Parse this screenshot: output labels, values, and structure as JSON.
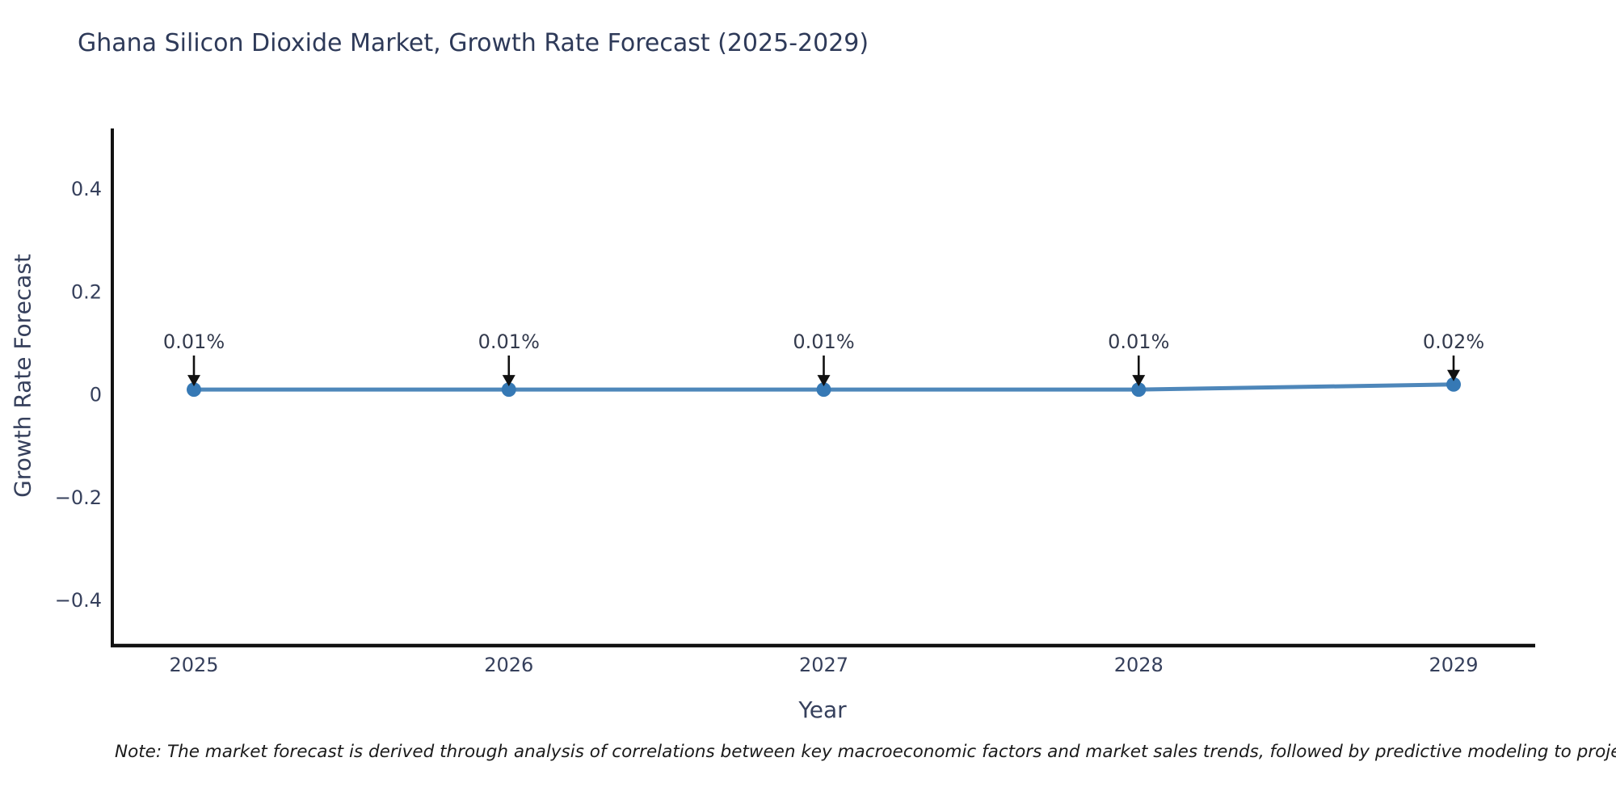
{
  "title": "Ghana Silicon Dioxide Market, Growth Rate Forecast (2025-2029)",
  "note": "Note: The market forecast is derived through analysis of correlations between key macroeconomic factors and market sales trends, followed by predictive modeling to project future sal",
  "chart_data": {
    "type": "line",
    "title": "Ghana Silicon Dioxide Market, Growth Rate Forecast (2025-2029)",
    "xlabel": "Year",
    "ylabel": "Growth Rate Forecast",
    "categories": [
      "2025",
      "2026",
      "2027",
      "2028",
      "2029"
    ],
    "series": [
      {
        "name": "Growth Rate Forecast",
        "values": [
          0.01,
          0.01,
          0.01,
          0.01,
          0.02
        ],
        "annotations": [
          "0.01%",
          "0.01%",
          "0.01%",
          "0.01%",
          "0.02%"
        ]
      }
    ],
    "ylim": [
      -0.49,
      0.51
    ],
    "yticks": [
      0.4,
      0.2,
      0,
      -0.2,
      -0.4
    ],
    "ytick_labels": [
      "0.4",
      "0.2",
      "0",
      "−0.2",
      "−0.4"
    ],
    "grid": false,
    "legend_position": "none",
    "colors": {
      "line": "#4e87ba",
      "marker": "#3679b5",
      "axis_spine": "#111111",
      "tick_label": "#36405c",
      "annotation_text": "#333a4d",
      "annotation_arrow": "#111111",
      "background": "#ffffff"
    }
  }
}
